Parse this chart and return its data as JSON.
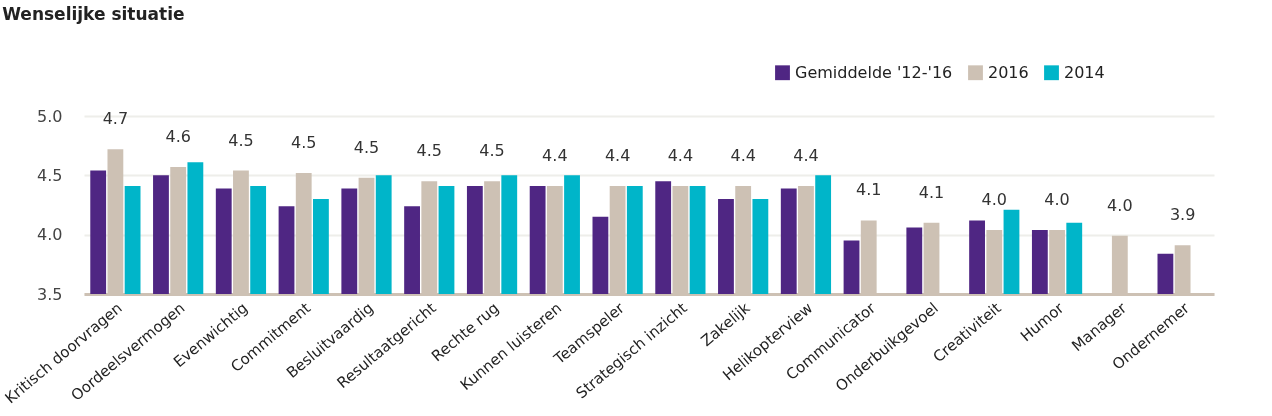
{
  "chart_data": {
    "type": "bar",
    "title": "Wenselijke situatie",
    "categories": [
      "Kritisch doorvragen",
      "Oordeelsvermogen",
      "Evenwichtig",
      "Commitment",
      "Besluitvaardig",
      "Resultaatgericht",
      "Rechte rug",
      "Kunnen luisteren",
      "Teamspeler",
      "Strategisch inzicht",
      "Zakelijk",
      "Helikopterview",
      "Communicator",
      "Onderbuikgevoel",
      "Creativiteit",
      "Humor",
      "Manager",
      "Ondernemer"
    ],
    "series": [
      {
        "name": "Gemiddelde '12-'16",
        "color": "#4f2683",
        "values": [
          4.54,
          4.5,
          4.39,
          4.24,
          4.39,
          4.24,
          4.41,
          4.41,
          4.15,
          4.45,
          4.3,
          4.39,
          3.95,
          4.06,
          4.12,
          4.04,
          null,
          3.84
        ]
      },
      {
        "name": "2016",
        "color": "#cdc1b4",
        "values": [
          4.72,
          4.57,
          4.54,
          4.52,
          4.48,
          4.45,
          4.45,
          4.41,
          4.41,
          4.41,
          4.41,
          4.41,
          4.12,
          4.1,
          4.04,
          4.04,
          3.99,
          3.91
        ],
        "value_labels": [
          "4.7",
          "4.6",
          "4.5",
          "4.5",
          "4.5",
          "4.5",
          "4.5",
          "4.4",
          "4.4",
          "4.4",
          "4.4",
          "4.4",
          "4.1",
          "4.1",
          "4.0",
          "4.0",
          "4.0",
          "3.9"
        ]
      },
      {
        "name": "2014",
        "color": "#00b5c9",
        "values": [
          4.41,
          4.61,
          4.41,
          4.3,
          4.5,
          4.41,
          4.5,
          4.5,
          4.41,
          4.41,
          4.3,
          4.5,
          null,
          null,
          4.21,
          4.1,
          null,
          null
        ]
      }
    ],
    "ylim": [
      3.5,
      5.0
    ],
    "yticks": [
      3.5,
      {
        "value": 4.0,
        "label": "4.0"
      },
      4.5,
      {
        "value": 5.0,
        "label": "5.0"
      }
    ],
    "grid": "y",
    "legend": "top right"
  }
}
